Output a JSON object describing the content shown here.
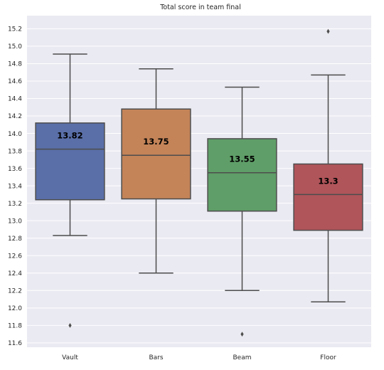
{
  "chart_data": {
    "type": "box",
    "title": "Total score in team final",
    "xlabel": "",
    "ylabel": "",
    "categories": [
      "Vault",
      "Bars",
      "Beam",
      "Floor"
    ],
    "colors": [
      "#5a6fa8",
      "#c48458",
      "#5f9e68",
      "#b0555a"
    ],
    "ylim": [
      11.55,
      15.35
    ],
    "yticks": [
      11.6,
      11.8,
      12.0,
      12.2,
      12.4,
      12.6,
      12.8,
      13.0,
      13.2,
      13.4,
      13.6,
      13.8,
      14.0,
      14.2,
      14.4,
      14.6,
      14.8,
      15.0,
      15.2
    ],
    "ytick_labels": [
      "11.6",
      "11.8",
      "12.0",
      "12.2",
      "12.4",
      "12.6",
      "12.8",
      "13.0",
      "13.2",
      "13.4",
      "13.6",
      "13.8",
      "14.0",
      "14.2",
      "14.4",
      "14.6",
      "14.8",
      "15.0",
      "15.2"
    ],
    "grid": true,
    "boxes": [
      {
        "category": "Vault",
        "whisker_low": 12.83,
        "q1": 13.24,
        "median": 13.82,
        "q3": 14.12,
        "whisker_high": 14.91,
        "outliers": [
          11.8
        ],
        "median_label": "13.82"
      },
      {
        "category": "Bars",
        "whisker_low": 12.4,
        "q1": 13.25,
        "median": 13.75,
        "q3": 14.28,
        "whisker_high": 14.74,
        "outliers": [],
        "median_label": "13.75"
      },
      {
        "category": "Beam",
        "whisker_low": 12.2,
        "q1": 13.11,
        "median": 13.55,
        "q3": 13.94,
        "whisker_high": 14.53,
        "outliers": [
          11.7
        ],
        "median_label": "13.55"
      },
      {
        "category": "Floor",
        "whisker_low": 12.07,
        "q1": 12.89,
        "median": 13.3,
        "q3": 13.65,
        "whisker_high": 14.67,
        "outliers": [
          15.17
        ],
        "median_label": "13.3"
      }
    ]
  }
}
